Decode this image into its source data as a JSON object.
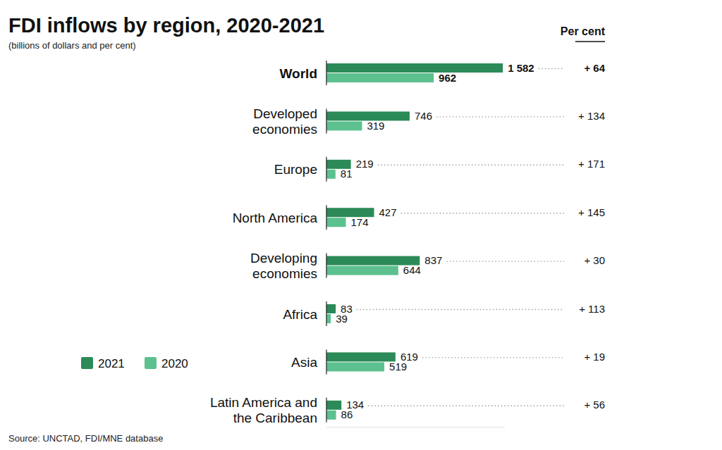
{
  "chart_data": {
    "type": "bar",
    "orientation": "horizontal",
    "title": "FDI inflows by region, 2020-2021",
    "subtitle": "(billions of dollars and per cent)",
    "source": "Source: UNCTAD, FDI/MNE database",
    "categories": [
      "World",
      "Developed economies",
      "Europe",
      "North America",
      "Developing economies",
      "Africa",
      "Asia",
      "Latin America and the Caribbean"
    ],
    "series": [
      {
        "name": "2021",
        "color": "#2b8a57",
        "values": [
          1582,
          746,
          219,
          427,
          837,
          83,
          619,
          134
        ],
        "value_labels": [
          "1 582",
          "746",
          "219",
          "427",
          "837",
          "83",
          "619",
          "134"
        ]
      },
      {
        "name": "2020",
        "color": "#5cc08f",
        "values": [
          962,
          319,
          81,
          174,
          644,
          39,
          519,
          86
        ]
      }
    ],
    "xlim": [
      0,
      1600
    ],
    "data_labels": true,
    "tick_labels": "y",
    "legend": "left",
    "grid": false,
    "percent_header": "Per cent",
    "percent_change": [
      64,
      134,
      171,
      145,
      30,
      113,
      19,
      56
    ],
    "percent_labels": [
      "+ 64",
      "+ 134",
      "+ 171",
      "+ 145",
      "+ 30",
      "+ 113",
      "+ 19",
      "+ 56"
    ]
  }
}
